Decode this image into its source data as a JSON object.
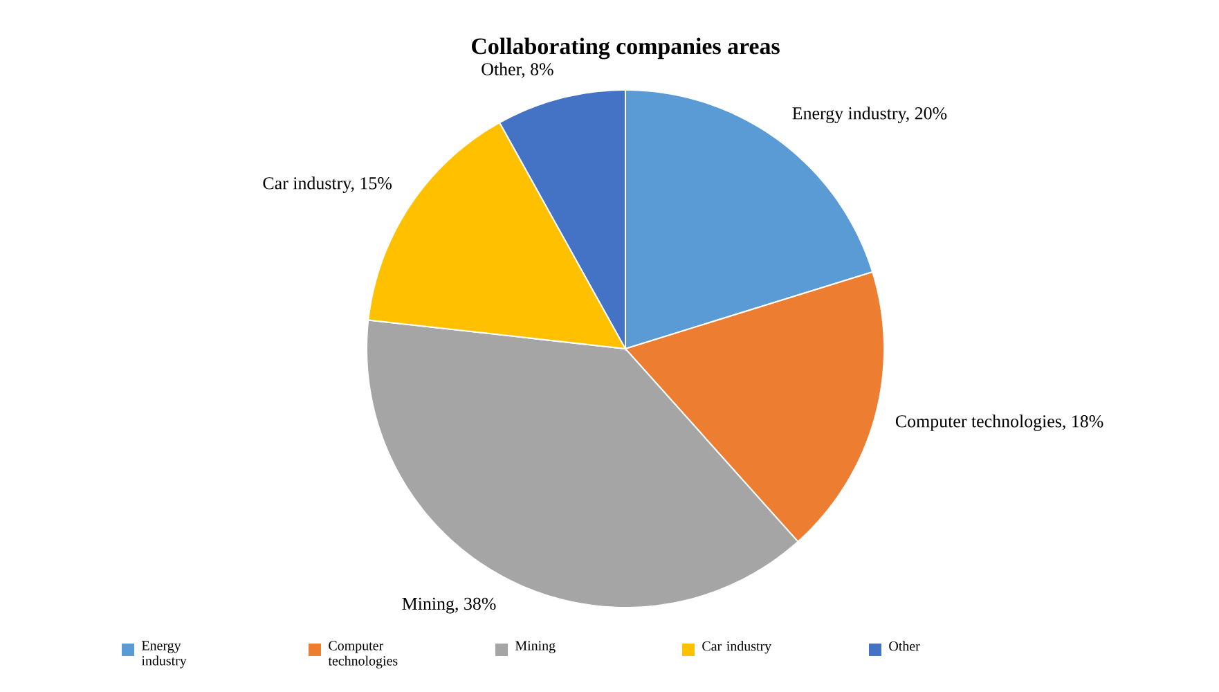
{
  "chart_data": {
    "type": "pie",
    "title": "Collaborating companies areas",
    "categories": [
      "Energy industry",
      "Computer technologies",
      "Mining",
      "Car industry",
      "Other"
    ],
    "values": [
      20,
      18,
      38,
      15,
      8
    ],
    "value_labels": [
      "Energy industry, 20%",
      "Computer technologies, 18%",
      "Mining, 38%",
      "Car industry, 15%",
      "Other, 8%"
    ],
    "colors": [
      "#5b9bd5",
      "#ed7d31",
      "#a5a5a5",
      "#ffc000",
      "#4472c4"
    ],
    "legend": "bottom"
  }
}
